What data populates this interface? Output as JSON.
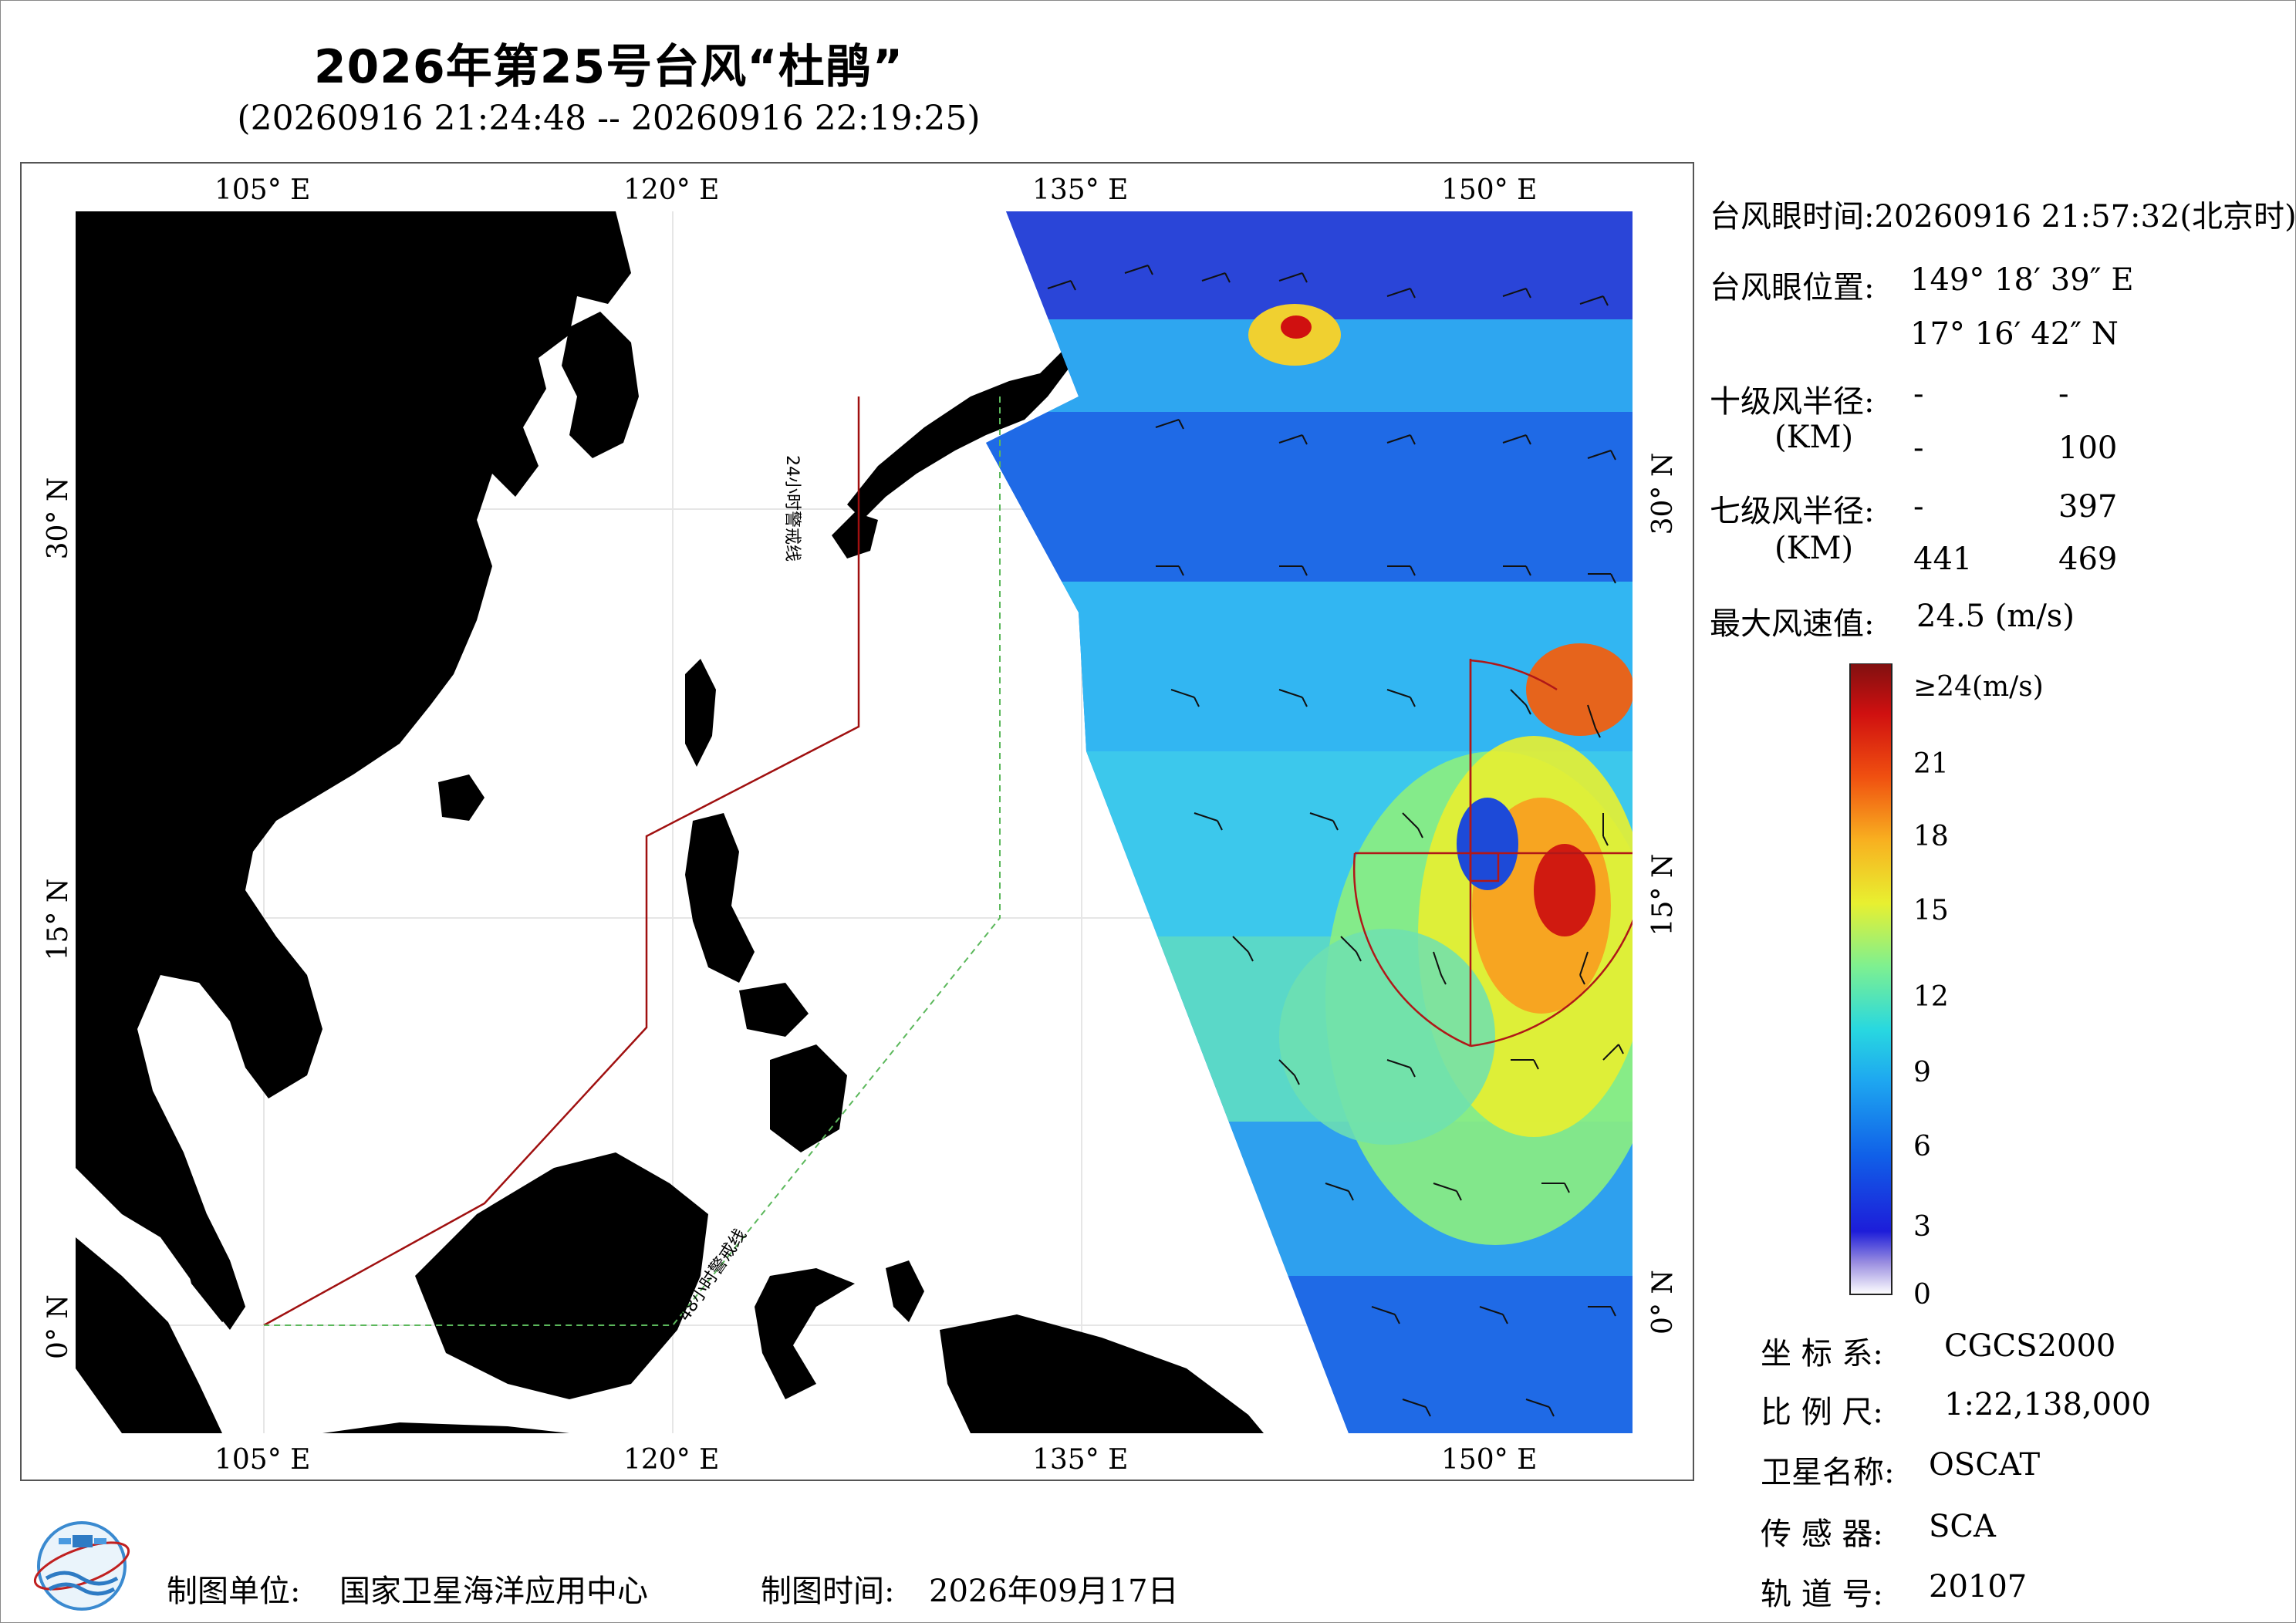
{
  "header": {
    "title": "2026年第25号台风“杜鹃”",
    "subtitle": "(20260916 21:24:48 -- 20260916 22:19:25)"
  },
  "map": {
    "lon_ticks": [
      "105° E",
      "120° E",
      "135° E",
      "150° E"
    ],
    "lat_ticks": [
      "30° N",
      "15° N",
      "0° N"
    ],
    "warning_24h_label": "24小时警戒线",
    "warning_48h_label": "48小时警戒线",
    "land_color": "#d4d4d4",
    "warning_24h_color": "#a01010",
    "warning_48h_color": "#5cb85c"
  },
  "typhoon_info": {
    "eye_time": "台风眼时间:20260916 21:57:32(北京时)",
    "eye_position_label": "台风眼位置:",
    "eye_lon": "149° 18′ 39″ E",
    "eye_lat": "17° 16′ 42″ N",
    "r10_label": "十级风半径:",
    "r10_unit": "(KM)",
    "r10_values": [
      "-",
      "-",
      "-",
      "100"
    ],
    "r7_label": "七级风半径:",
    "r7_unit": "(KM)",
    "r7_values": [
      "-",
      "397",
      "441",
      "469"
    ],
    "max_wind_label": "最大风速值:",
    "max_wind_value": "24.5  (m/s)"
  },
  "colorbar": {
    "top_label": "≥24(m/s)",
    "ticks": [
      "21",
      "18",
      "15",
      "12",
      "9",
      "6",
      "3",
      "0"
    ]
  },
  "meta": {
    "crs_label": "坐 标 系:",
    "crs_value": "CGCS2000",
    "scale_label": "比 例 尺:",
    "scale_value": "1:22,138,000",
    "satellite_label": "卫星名称:",
    "satellite_value": "OSCAT",
    "sensor_label": "传 感 器:",
    "sensor_value": "SCA",
    "orbit_label": "轨 道 号:",
    "orbit_value": "20107"
  },
  "footer": {
    "producer_label": "制图单位:",
    "producer_value": "国家卫星海洋应用中心",
    "date_label": "制图时间:",
    "date_value": "2026年09月17日"
  }
}
